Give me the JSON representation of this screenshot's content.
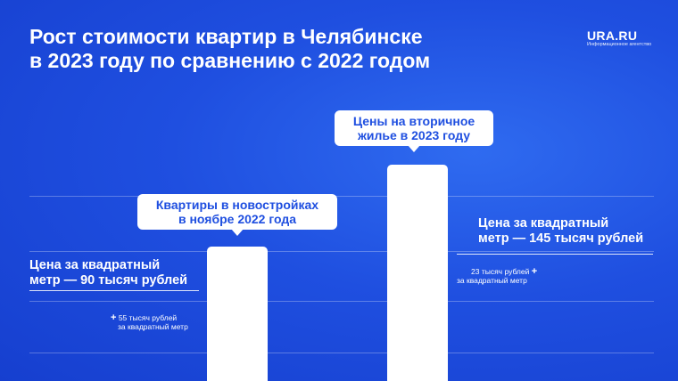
{
  "header": {
    "title_line1": "Рост стоимости квартир в Челябинске",
    "title_line2": "в 2023 году по сравнению с 2022 годом"
  },
  "logo": {
    "name": "URA.RU",
    "tagline": "Информационное агентство"
  },
  "chart_data": {
    "type": "bar",
    "categories": [
      "Квартиры в новостройках в ноябре 2022 года",
      "Цены на вторичное жилье в 2023 году"
    ],
    "values": [
      90,
      145
    ],
    "unit": "тысяч рублей за квадратный метр",
    "ylim": [
      0,
      145
    ],
    "grid": true,
    "bars": [
      {
        "callout_line1": "Квартиры в новостройках",
        "callout_line2": "в ноябре 2022 года",
        "price_line1": "Цена за квадратный",
        "price_line2": "метр — 90 тысяч рублей",
        "delta_line1": "55 тысяч рублей",
        "delta_line2": "за квадратный метр",
        "value": 90
      },
      {
        "callout_line1": "Цены на вторичное",
        "callout_line2": "жилье в 2023 году",
        "price_line1": "Цена за квадратный",
        "price_line2": "метр — 145 тысяч рублей",
        "delta_line1": "23 тысяч рублей",
        "delta_line2": "за квадратный метр",
        "value": 145
      }
    ]
  },
  "colors": {
    "background": "#1f4fe0",
    "bar": "#ffffff",
    "callout_text": "#1f4fe0"
  }
}
